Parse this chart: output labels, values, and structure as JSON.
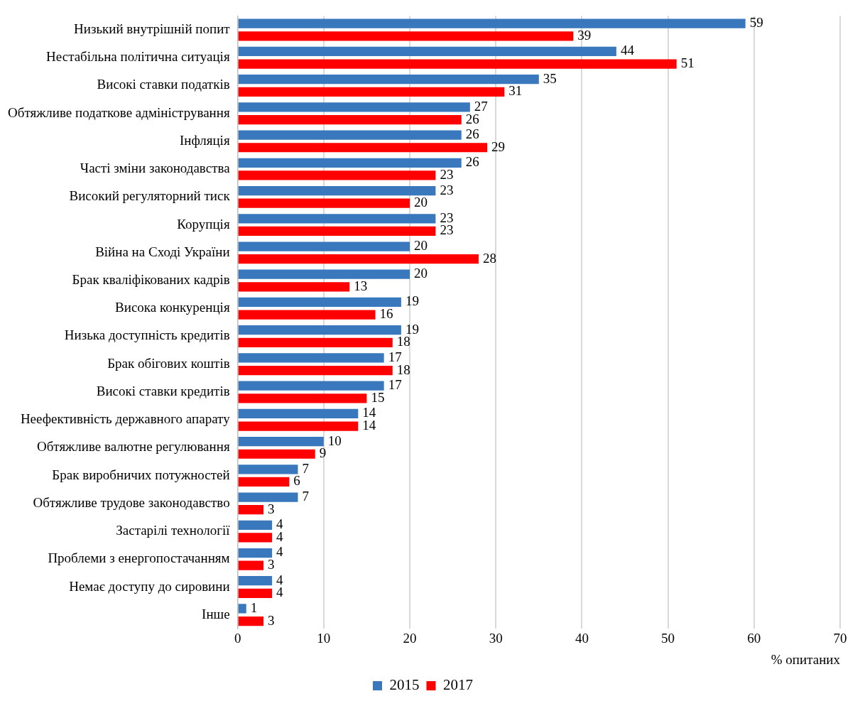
{
  "chart_data": {
    "type": "bar",
    "orientation": "horizontal",
    "xlabel": "% опитаних",
    "categories": [
      "Низький внутрішній попит",
      "Нестабільна політична ситуація",
      "Високі ставки податків",
      "Обтяжливе податкове адміністрування",
      "Інфляція",
      "Часті зміни законодавства",
      "Високий регуляторний тиск",
      "Корупція",
      "Війна на Сході України",
      "Брак кваліфікованих кадрів",
      "Висока конкуренція",
      "Низька доступність кредитів",
      "Брак обігових коштів",
      "Високі ставки кредитів",
      "Неефективність державного апарату",
      "Обтяжливе валютне регулювання",
      "Брак виробничих потужностей",
      "Обтяжливе трудове законодавство",
      "Застарілі технології",
      "Проблеми з енергопостачанням",
      "Немає доступу до сировини",
      "Інше"
    ],
    "series": [
      {
        "name": "2015",
        "color": "#3a78bd",
        "values": [
          59,
          44,
          35,
          27,
          26,
          26,
          23,
          23,
          20,
          20,
          19,
          19,
          17,
          17,
          14,
          10,
          7,
          7,
          4,
          4,
          4,
          1
        ]
      },
      {
        "name": "2017",
        "color": "#ff0000",
        "values": [
          39,
          51,
          31,
          26,
          29,
          23,
          20,
          23,
          28,
          13,
          16,
          18,
          18,
          15,
          14,
          9,
          6,
          3,
          4,
          3,
          4,
          3
        ]
      }
    ],
    "xlim": [
      0,
      70
    ],
    "xticks": [
      0,
      10,
      20,
      30,
      40,
      50,
      60,
      70
    ],
    "grid": "x",
    "legend": "bottom",
    "data_labels": true
  }
}
